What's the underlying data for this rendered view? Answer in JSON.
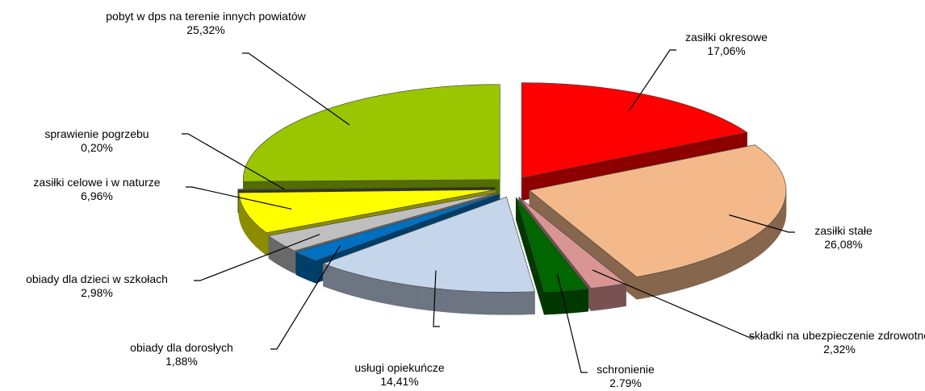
{
  "chart_data": {
    "type": "pie",
    "categories": [
      "zasiłki okresowe",
      "zasiłki stałe",
      "składki na ubezpieczenie zdrowotne",
      "schronienie",
      "usługi opiekuńcze",
      "obiady dla dorosłych",
      "obiady dla dzieci w szkołach",
      "zasiłki celowe i w naturze",
      "sprawienie pogrzebu",
      "pobyt w dps na terenie innych powiatów"
    ],
    "values": [
      17.06,
      26.08,
      2.32,
      2.79,
      14.41,
      1.88,
      2.98,
      6.96,
      0.2,
      25.32
    ],
    "value_labels": [
      "17,06%",
      "26,08%",
      "2,32%",
      "2.79%",
      "14,41%",
      "1,88%",
      "2,98%",
      "6,96%",
      "0,20%",
      "25,32%"
    ],
    "colors": [
      "#ff0000",
      "#f4b98a",
      "#d99594",
      "#006600",
      "#c5d5ea",
      "#0070c0",
      "#bfbfbf",
      "#ffff00",
      "#4f6228",
      "#99c600"
    ]
  }
}
